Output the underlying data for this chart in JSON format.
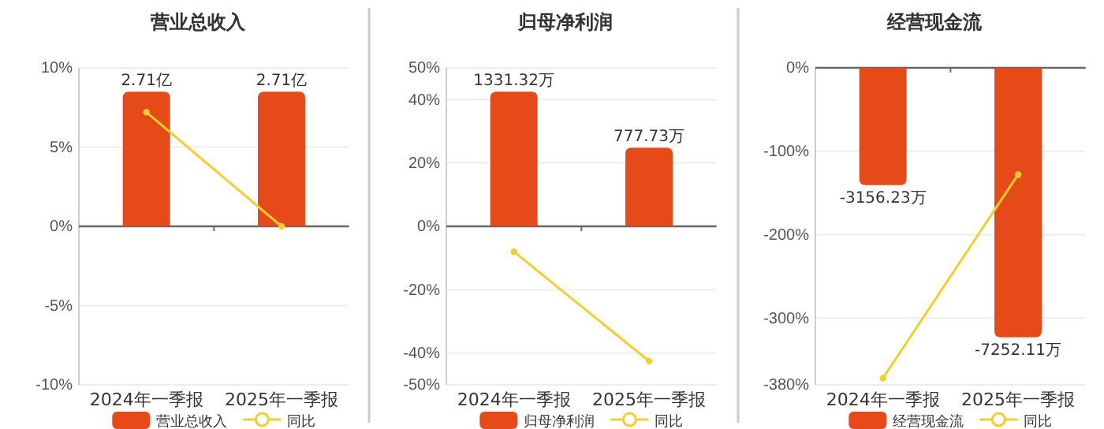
{
  "chart_data": [
    {
      "type": "bar",
      "title": "营业总收入",
      "categories": [
        "2024年一季报",
        "2025年一季报"
      ],
      "series": [
        {
          "name": "营业总收入",
          "axis": "y2",
          "color": "#e64a19",
          "values": [
            2.71,
            2.71
          ],
          "value_labels": [
            "2.71亿",
            "2.71亿"
          ]
        },
        {
          "name": "同比",
          "type": "line",
          "axis": "y",
          "color": "#f2cf2a",
          "values": [
            7.2,
            0
          ]
        }
      ],
      "ylim": [
        -10,
        10
      ],
      "yticks": [
        {
          "value": -10,
          "label": "-10%"
        },
        {
          "value": -5,
          "label": "-5%"
        },
        {
          "value": 0,
          "label": "0%"
        },
        {
          "value": 5,
          "label": "5%"
        },
        {
          "value": 10,
          "label": "10%"
        }
      ],
      "grid": "y",
      "legend": "bottom",
      "marker": "circle"
    },
    {
      "type": "bar",
      "title": "归母净利润",
      "categories": [
        "2024年一季报",
        "2025年一季报"
      ],
      "series": [
        {
          "name": "归母净利润",
          "axis": "y2",
          "color": "#e64a19",
          "values": [
            1331.32,
            777.73
          ],
          "value_labels": [
            "1331.32万",
            "777.73万"
          ]
        },
        {
          "name": "同比",
          "type": "line",
          "axis": "y",
          "color": "#f2cf2a",
          "values": [
            -8,
            -42.5
          ]
        }
      ],
      "ylim": [
        -50,
        50
      ],
      "yticks": [
        {
          "value": -50,
          "label": "-50%"
        },
        {
          "value": -40,
          "label": "-40%"
        },
        {
          "value": -20,
          "label": "-20%"
        },
        {
          "value": 0,
          "label": "0%"
        },
        {
          "value": 20,
          "label": "20%"
        },
        {
          "value": 40,
          "label": "40%"
        },
        {
          "value": 50,
          "label": "50%"
        }
      ],
      "grid": "y",
      "legend": "bottom",
      "marker": "circle"
    },
    {
      "type": "bar",
      "title": "经营现金流",
      "categories": [
        "2024年一季报",
        "2025年一季报"
      ],
      "series": [
        {
          "name": "经营现金流",
          "axis": "y2",
          "color": "#e64a19",
          "values": [
            -3156.23,
            -7252.11
          ],
          "value_labels": [
            "-3156.23万",
            "-7252.11万"
          ]
        },
        {
          "name": "同比",
          "type": "line",
          "axis": "y",
          "color": "#f2cf2a",
          "values": [
            -372,
            -128
          ]
        }
      ],
      "ylim": [
        -380,
        0
      ],
      "yticks": [
        {
          "value": -380,
          "label": "-380%"
        },
        {
          "value": -300,
          "label": "-300%"
        },
        {
          "value": -200,
          "label": "-200%"
        },
        {
          "value": -100,
          "label": "-100%"
        },
        {
          "value": 0,
          "label": "0%"
        }
      ],
      "grid": "y",
      "legend": "bottom",
      "marker": "circle"
    }
  ]
}
